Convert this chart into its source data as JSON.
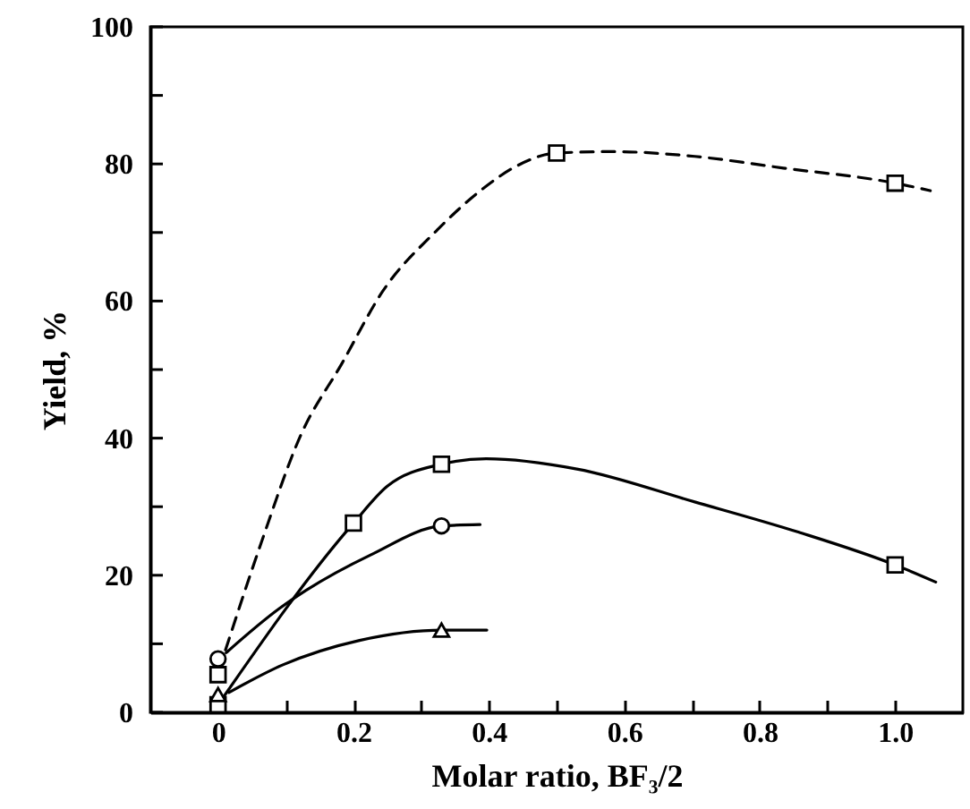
{
  "chart_data": {
    "type": "line",
    "xlabel": "Molar ratio, BF₃/2",
    "ylabel": "Yield, %",
    "xlim": [
      -0.1,
      1.1
    ],
    "ylim": [
      0,
      100
    ],
    "xticks": [
      0,
      {
        "value": 0.1,
        "label": null
      },
      0.2,
      {
        "value": 0.3,
        "label": null
      },
      0.4,
      {
        "value": 0.5,
        "label": null
      },
      0.6,
      {
        "value": 0.7,
        "label": null
      },
      0.8,
      {
        "value": 0.9,
        "label": null
      },
      {
        "value": 1.0,
        "label": "1.0"
      }
    ],
    "yticks": [
      0,
      {
        "value": 10,
        "label": null
      },
      20,
      {
        "value": 30,
        "label": null
      },
      40,
      {
        "value": 50,
        "label": null
      },
      60,
      {
        "value": 70,
        "label": null
      },
      80,
      {
        "value": 90,
        "label": null
      },
      100
    ],
    "grid": false,
    "series": [
      {
        "type": "line",
        "line_style": "dashed",
        "color": "#000000",
        "x": [
          0.011,
          0.064,
          0.122,
          0.183,
          0.243,
          0.322,
          0.39,
          0.443,
          0.5,
          0.583,
          0.704,
          0.835,
          1.0,
          1.052
        ],
        "values": [
          9.1,
          24.8,
          40.4,
          50.9,
          61.4,
          70.2,
          76.3,
          79.8,
          81.6,
          81.8,
          81.1,
          79.4,
          77.2,
          76.1
        ]
      },
      {
        "type": "scatter",
        "marker": "square",
        "color": "#000000",
        "x": [
          0,
          0.5,
          1.0
        ],
        "values": [
          5.5,
          81.6,
          77.2
        ]
      },
      {
        "type": "line",
        "line_style": "solid",
        "color": "#000000",
        "x": [
          0,
          0.2,
          0.25,
          0.33,
          0.396,
          0.53,
          0.704,
          0.857,
          1.0,
          1.06
        ],
        "values": [
          1.1,
          27.6,
          33,
          36.2,
          37,
          35.5,
          30.7,
          26.3,
          21.5,
          19
        ]
      },
      {
        "type": "scatter",
        "marker": "square",
        "color": "#000000",
        "x": [
          0,
          0.2,
          0.33,
          1.0
        ],
        "values": [
          1.1,
          27.6,
          36.2,
          21.5
        ]
      },
      {
        "type": "line",
        "line_style": "solid",
        "color": "#000000",
        "x": [
          0.012,
          0.09,
          0.13,
          0.226,
          0.33,
          0.387
        ],
        "values": [
          8.7,
          15.1,
          17.8,
          23,
          27.2,
          27.4
        ]
      },
      {
        "type": "scatter",
        "marker": "circle",
        "color": "#000000",
        "x": [
          0,
          0.33
        ],
        "values": [
          7.8,
          27.2
        ]
      },
      {
        "type": "line",
        "line_style": "solid",
        "color": "#000000",
        "x": [
          0.016,
          0.095,
          0.209,
          0.332,
          0.397
        ],
        "values": [
          2.9,
          6.9,
          10.5,
          12.0,
          12.0
        ]
      },
      {
        "type": "scatter",
        "marker": "triangle",
        "color": "#000000",
        "x": [
          0,
          0.33
        ],
        "values": [
          2.6,
          12.0
        ]
      }
    ]
  }
}
